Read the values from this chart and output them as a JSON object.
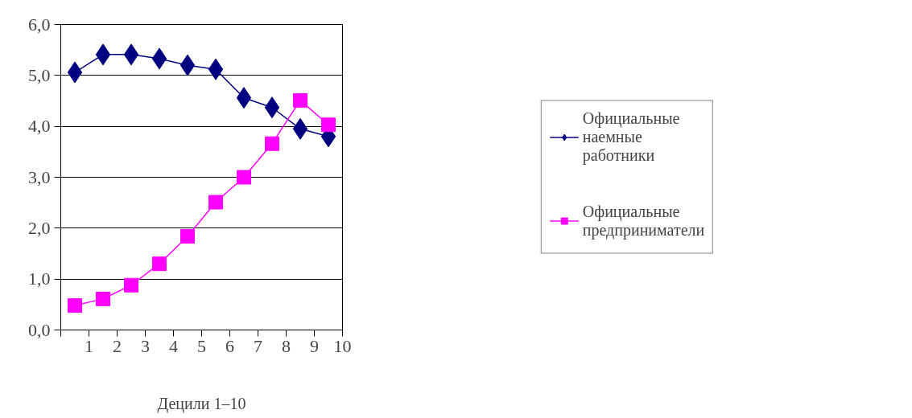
{
  "chart_data": {
    "type": "line",
    "xlabel": "Децили 1–10",
    "x": [
      0.5,
      1.5,
      2.5,
      3.5,
      4.5,
      5.5,
      6.5,
      7.5,
      8.5,
      9.5
    ],
    "series": [
      {
        "name": "Официальные наемные работники",
        "color": "#000080",
        "marker": "diamond",
        "values": [
          5.06,
          5.41,
          5.41,
          5.33,
          5.2,
          5.12,
          4.56,
          4.37,
          3.95,
          3.8
        ]
      },
      {
        "name": "Официальные предприниматели",
        "color": "#ff00ff",
        "marker": "square",
        "values": [
          0.48,
          0.61,
          0.88,
          1.3,
          1.84,
          2.51,
          3.0,
          3.66,
          4.51,
          4.03
        ]
      }
    ],
    "xlim": [
      0,
      10
    ],
    "xticks": [
      {
        "value": 0,
        "label": null
      },
      1,
      2,
      3,
      4,
      5,
      6,
      7,
      8,
      9,
      10
    ],
    "ylim": [
      0,
      6
    ],
    "yticks": [
      {
        "value": 0,
        "label": "0,0"
      },
      {
        "value": 1,
        "label": "1,0"
      },
      {
        "value": 2,
        "label": "2,0"
      },
      {
        "value": 3,
        "label": "3,0"
      },
      {
        "value": 4,
        "label": "4,0"
      },
      {
        "value": 5,
        "label": "5,0"
      },
      {
        "value": 6,
        "label": "6,0"
      }
    ],
    "grid": "y",
    "legend": "right",
    "line_style": "solid"
  }
}
